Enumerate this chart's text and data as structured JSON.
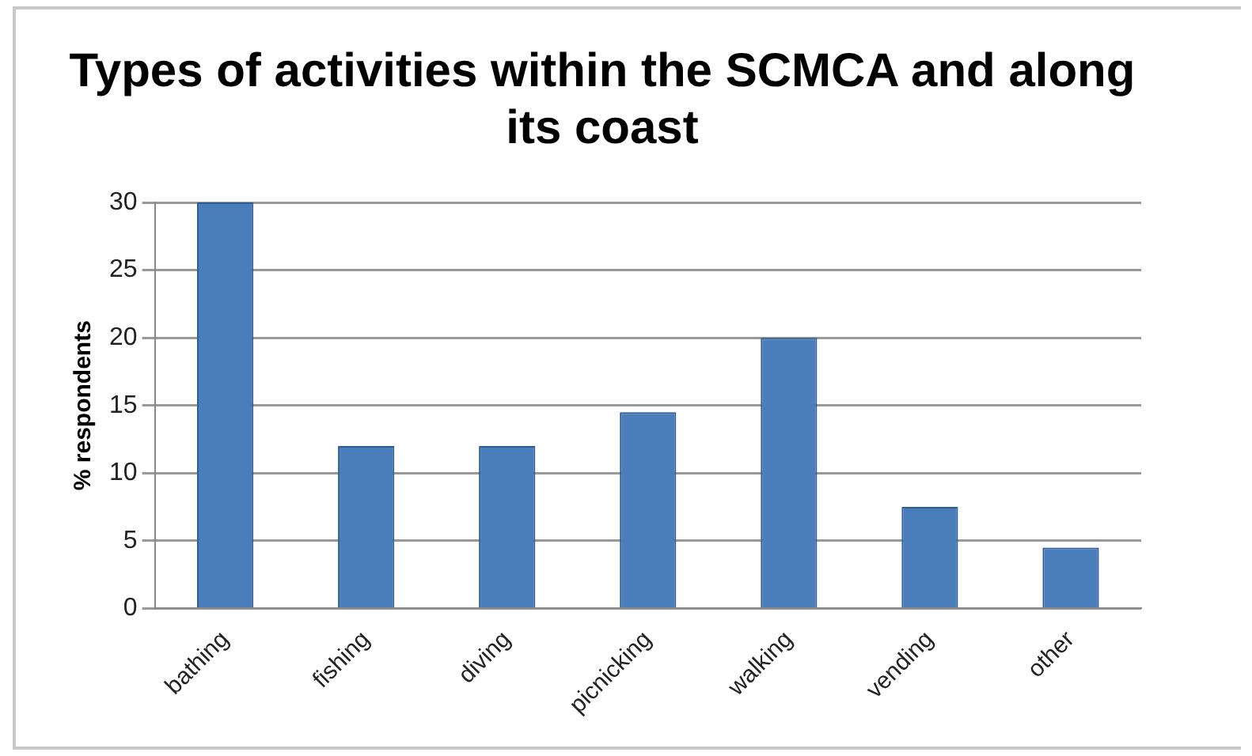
{
  "chart_data": {
    "type": "bar",
    "title": "Types of activities within the SCMCA and along its coast",
    "ylabel": "% respondents",
    "categories": [
      "bathing",
      "fishing",
      "diving",
      "picnicking",
      "walking",
      "vending",
      "other"
    ],
    "values": [
      30,
      12,
      12,
      14.5,
      20,
      7.5,
      4.5
    ],
    "color": "#4a7ebb",
    "ylim": [
      0,
      30
    ],
    "yticks": [
      0,
      5,
      10,
      15,
      20,
      25,
      30
    ],
    "grid": "y",
    "legend": false
  }
}
